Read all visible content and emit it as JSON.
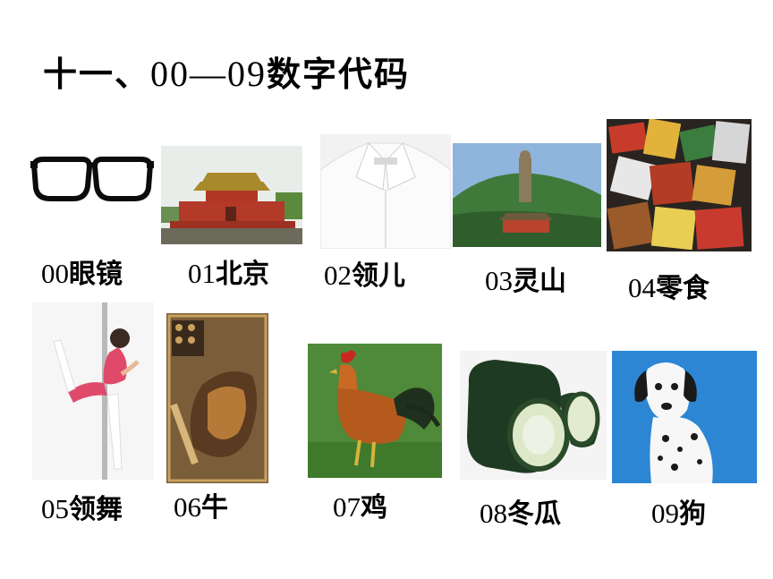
{
  "slide": {
    "title_prefix": "十一、",
    "title_numbers": "00—09",
    "title_suffix": "数字代码"
  },
  "items": [
    {
      "num": "00",
      "word": "眼镜",
      "icon": "glasses-icon"
    },
    {
      "num": "01",
      "word": "北京",
      "icon": "tiananmen-icon"
    },
    {
      "num": "02",
      "word": "领儿",
      "icon": "shirt-collar-icon"
    },
    {
      "num": "03",
      "word": "灵山",
      "icon": "buddha-statue-icon"
    },
    {
      "num": "04",
      "word": "零食",
      "icon": "snacks-icon"
    },
    {
      "num": "05",
      "word": "领舞",
      "icon": "pole-dancer-icon"
    },
    {
      "num": "06",
      "word": "牛",
      "icon": "bull-poster-icon"
    },
    {
      "num": "07",
      "word": "鸡",
      "icon": "rooster-icon"
    },
    {
      "num": "08",
      "word": "冬瓜",
      "icon": "wax-gourd-icon"
    },
    {
      "num": "09",
      "word": "狗",
      "icon": "dalmatian-icon"
    }
  ]
}
